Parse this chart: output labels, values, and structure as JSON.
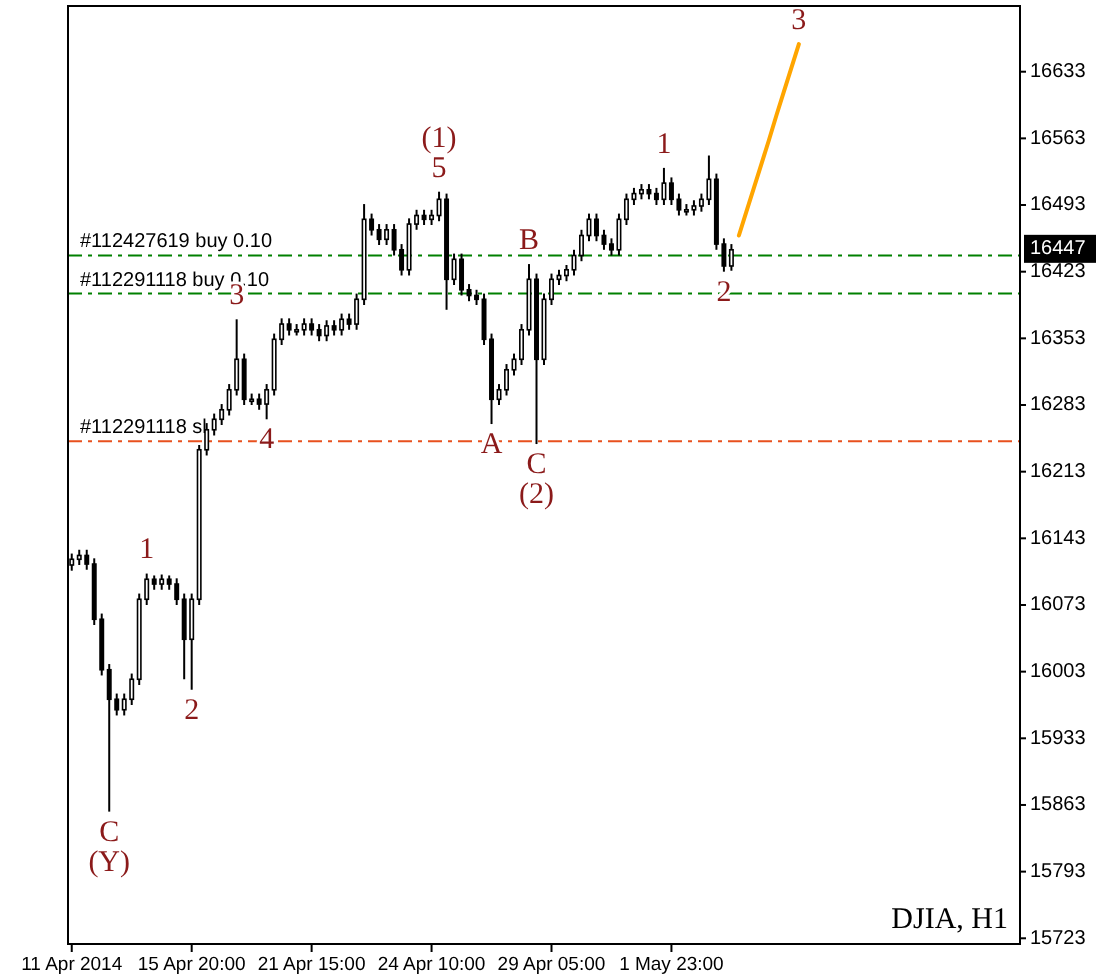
{
  "chart_data": {
    "type": "candlestick",
    "title": "DJIA, H1",
    "categories": [
      "11 Apr 2014",
      null,
      null,
      null,
      null,
      null,
      null,
      null,
      null,
      null,
      null,
      null,
      null,
      null,
      null,
      null,
      "15 Apr 20:00",
      null,
      null,
      null,
      null,
      null,
      null,
      null,
      null,
      null,
      null,
      null,
      null,
      null,
      null,
      null,
      "21 Apr 15:00",
      null,
      null,
      null,
      null,
      null,
      null,
      null,
      null,
      null,
      null,
      null,
      null,
      null,
      null,
      null,
      "24 Apr 10:00",
      null,
      null,
      null,
      null,
      null,
      null,
      null,
      null,
      null,
      null,
      null,
      null,
      null,
      null,
      null,
      "29 Apr 05:00",
      null,
      null,
      null,
      null,
      null,
      null,
      null,
      null,
      null,
      null,
      null,
      null,
      null,
      null,
      null,
      "1 May 23:00",
      null,
      null,
      null,
      null,
      null,
      null,
      null,
      null,
      null,
      null,
      null,
      null,
      null,
      null,
      null,
      null,
      null,
      null,
      null,
      null,
      null,
      null,
      null,
      null,
      null,
      null,
      null,
      null,
      null,
      null,
      null,
      null,
      null,
      null,
      null,
      null,
      null,
      null,
      null,
      null,
      null,
      null,
      null,
      null,
      null,
      null
    ],
    "ohlc": [
      [
        16115,
        16127,
        16109,
        16121
      ],
      [
        16121,
        16131,
        16115,
        16125
      ],
      [
        16125,
        16131,
        16110,
        16116
      ],
      [
        16116,
        16122,
        16052,
        16058
      ],
      [
        16058,
        16064,
        15999,
        16005
      ],
      [
        16005,
        16011,
        15856,
        15974
      ],
      [
        15974,
        15980,
        15957,
        15963
      ],
      [
        15963,
        15980,
        15957,
        15974
      ],
      [
        15974,
        16001,
        15968,
        15995
      ],
      [
        15995,
        16085,
        15989,
        16079
      ],
      [
        16079,
        16106,
        16073,
        16100
      ],
      [
        16100,
        16104,
        16089,
        16095
      ],
      [
        16095,
        16105,
        16089,
        16100
      ],
      [
        16100,
        16104,
        16089,
        16095
      ],
      [
        16095,
        16101,
        16073,
        16079
      ],
      [
        16079,
        16085,
        15995,
        16037
      ],
      [
        16037,
        16085,
        15984,
        16079
      ],
      [
        16079,
        16241,
        16073,
        16236
      ],
      [
        16236,
        16264,
        16230,
        16257
      ],
      [
        16257,
        16274,
        16251,
        16268
      ],
      [
        16268,
        16284,
        16262,
        16278
      ],
      [
        16278,
        16305,
        16272,
        16299
      ],
      [
        16299,
        16373,
        16293,
        16331
      ],
      [
        16331,
        16337,
        16283,
        16289
      ],
      [
        16289,
        16295,
        16283,
        16289
      ],
      [
        16289,
        16295,
        16278,
        16284
      ],
      [
        16284,
        16305,
        16268,
        16299
      ],
      [
        16299,
        16358,
        16293,
        16352
      ],
      [
        16352,
        16374,
        16346,
        16368
      ],
      [
        16368,
        16374,
        16356,
        16362
      ],
      [
        16362,
        16368,
        16356,
        16362
      ],
      [
        16362,
        16374,
        16356,
        16368
      ],
      [
        16368,
        16374,
        16356,
        16362
      ],
      [
        16362,
        16368,
        16350,
        16356
      ],
      [
        16356,
        16372,
        16350,
        16366
      ],
      [
        16366,
        16372,
        16356,
        16362
      ],
      [
        16362,
        16379,
        16356,
        16373
      ],
      [
        16373,
        16379,
        16362,
        16368
      ],
      [
        16368,
        16400,
        16362,
        16394
      ],
      [
        16394,
        16494,
        16388,
        16478
      ],
      [
        16478,
        16484,
        16461,
        16467
      ],
      [
        16467,
        16473,
        16451,
        16457
      ],
      [
        16457,
        16473,
        16451,
        16467
      ],
      [
        16467,
        16473,
        16440,
        16446
      ],
      [
        16446,
        16452,
        16419,
        16425
      ],
      [
        16425,
        16479,
        16419,
        16473
      ],
      [
        16473,
        16488,
        16467,
        16482
      ],
      [
        16482,
        16488,
        16472,
        16478
      ],
      [
        16478,
        16488,
        16472,
        16482
      ],
      [
        16482,
        16507,
        16476,
        16499
      ],
      [
        16499,
        16505,
        16383,
        16415
      ],
      [
        16415,
        16442,
        16409,
        16436
      ],
      [
        16436,
        16442,
        16398,
        16404
      ],
      [
        16404,
        16410,
        16392,
        16398
      ],
      [
        16398,
        16404,
        16388,
        16394
      ],
      [
        16394,
        16400,
        16346,
        16352
      ],
      [
        16352,
        16358,
        16263,
        16289
      ],
      [
        16289,
        16305,
        16283,
        16299
      ],
      [
        16299,
        16326,
        16293,
        16320
      ],
      [
        16320,
        16337,
        16314,
        16331
      ],
      [
        16331,
        16368,
        16325,
        16362
      ],
      [
        16362,
        16431,
        16356,
        16415
      ],
      [
        16415,
        16421,
        16242,
        16331
      ],
      [
        16331,
        16400,
        16325,
        16394
      ],
      [
        16394,
        16421,
        16388,
        16415
      ],
      [
        16415,
        16425,
        16409,
        16419
      ],
      [
        16419,
        16430,
        16413,
        16425
      ],
      [
        16425,
        16446,
        16419,
        16440
      ],
      [
        16440,
        16467,
        16434,
        16461
      ],
      [
        16461,
        16484,
        16455,
        16478
      ],
      [
        16478,
        16484,
        16455,
        16461
      ],
      [
        16461,
        16467,
        16446,
        16452
      ],
      [
        16452,
        16458,
        16440,
        16446
      ],
      [
        16446,
        16484,
        16440,
        16478
      ],
      [
        16478,
        16505,
        16472,
        16499
      ],
      [
        16499,
        16511,
        16493,
        16505
      ],
      [
        16505,
        16515,
        16499,
        16509
      ],
      [
        16509,
        16515,
        16499,
        16505
      ],
      [
        16505,
        16511,
        16493,
        16499
      ],
      [
        16499,
        16532,
        16493,
        16516
      ],
      [
        16516,
        16522,
        16493,
        16499
      ],
      [
        16499,
        16505,
        16482,
        16488
      ],
      [
        16488,
        16494,
        16482,
        16488
      ],
      [
        16488,
        16498,
        16482,
        16492
      ],
      [
        16492,
        16505,
        16486,
        16499
      ],
      [
        16499,
        16545,
        16493,
        16520
      ],
      [
        16520,
        16526,
        16446,
        16452
      ],
      [
        16452,
        16458,
        16423,
        16429
      ],
      [
        16429,
        16452,
        16424,
        16446
      ],
      null,
      null,
      null,
      null,
      null,
      null,
      null,
      null,
      null,
      null,
      null,
      null,
      null,
      null,
      null,
      null,
      null,
      null,
      null,
      null,
      null,
      null,
      null,
      null,
      null,
      null,
      null,
      null,
      null,
      null,
      null,
      null,
      null,
      null,
      null,
      null,
      null,
      null
    ],
    "color": "#000000",
    "series": [
      {
        "type": "line",
        "values": [
          null,
          null,
          null,
          null,
          null,
          null,
          null,
          null,
          null,
          null,
          null,
          null,
          null,
          null,
          null,
          null,
          null,
          null,
          null,
          null,
          null,
          null,
          null,
          null,
          null,
          null,
          null,
          null,
          null,
          null,
          null,
          null,
          null,
          null,
          null,
          null,
          null,
          null,
          null,
          null,
          null,
          null,
          null,
          null,
          null,
          null,
          null,
          null,
          null,
          null,
          null,
          null,
          null,
          null,
          null,
          null,
          null,
          null,
          null,
          null,
          null,
          null,
          null,
          null,
          null,
          null,
          null,
          null,
          null,
          null,
          null,
          null,
          null,
          null,
          null,
          null,
          null,
          null,
          null,
          null,
          null,
          null,
          null,
          null,
          null,
          null,
          null,
          null,
          null,
          16461,
          16486,
          16511,
          16536,
          16561,
          16587,
          16612,
          16637,
          16662,
          null,
          null,
          null,
          null,
          null,
          null,
          null,
          null,
          null,
          null,
          null,
          null,
          null,
          null,
          null,
          null,
          null,
          null,
          null,
          null,
          null,
          null,
          null,
          null,
          null,
          null,
          null,
          null,
          null
        ],
        "color": "#ffa500"
      }
    ],
    "ylim": [
      15717,
      16702
    ],
    "yticks": [
      15723,
      15793,
      15863,
      15933,
      16003,
      16073,
      16143,
      16213,
      16283,
      16353,
      16423,
      16493,
      16563,
      16633
    ],
    "ref_lines": [
      {
        "axis": "y",
        "value": 16440,
        "label": "#112427619 buy 0.10",
        "color": "#008000",
        "line_style": "dashed"
      },
      {
        "axis": "y",
        "value": 16400,
        "label": "#112291118 buy 0.10",
        "color": "#008000",
        "line_style": "dashed"
      },
      {
        "axis": "y",
        "value": 16245,
        "label": "#112291118 sl",
        "color": "#e8501e",
        "line_style": "dashed"
      }
    ],
    "annotations": [
      {
        "text": "16447",
        "y": 16447
      },
      {
        "text": "C",
        "y": 15856
      },
      {
        "text": "(Y)",
        "y": 15856
      },
      {
        "text": "1",
        "y": 16106
      },
      {
        "text": "2",
        "y": 15984
      },
      {
        "text": "3",
        "y": 16373
      },
      {
        "text": "4",
        "y": 16268
      },
      {
        "text": "5",
        "y": 16507
      },
      {
        "text": "(1)",
        "y": 16507
      },
      {
        "text": "A",
        "y": 16263
      },
      {
        "text": "B",
        "y": 16431
      },
      {
        "text": "C",
        "y": 16242
      },
      {
        "text": "(2)",
        "y": 16242
      },
      {
        "text": "1",
        "y": 16532
      },
      {
        "text": "2",
        "y": 16423
      },
      {
        "text": "3",
        "y": 16662
      }
    ],
    "grid": false
  }
}
